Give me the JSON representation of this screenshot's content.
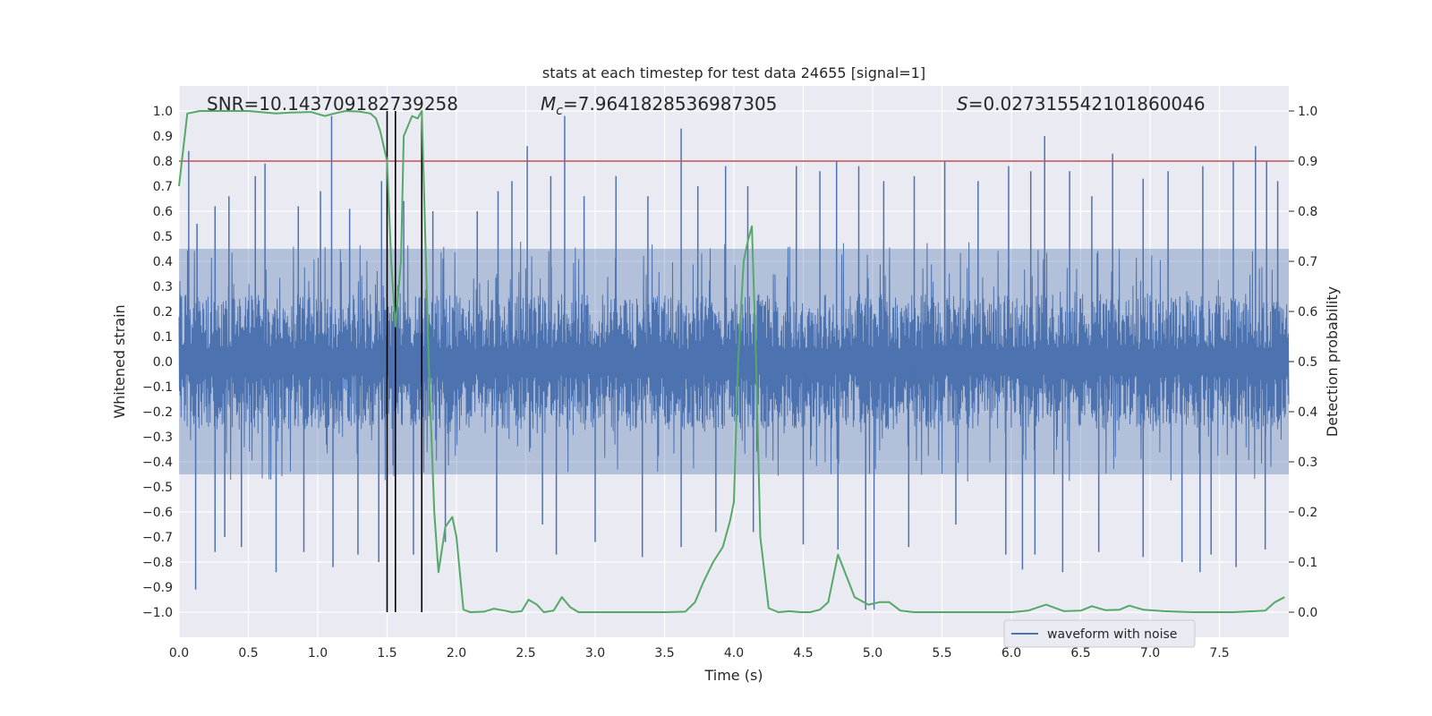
{
  "chart_data": {
    "type": "line",
    "title": "stats at each timestep for test data 24655 [signal=1]",
    "xlabel": "Time (s)",
    "ylabel": "Whitened strain",
    "y2label": "Detection probability",
    "xlim": [
      0.0,
      8.0
    ],
    "ylim": [
      -1.1,
      1.1
    ],
    "y2lim": [
      -0.05,
      1.05
    ],
    "xticks": [
      0.0,
      0.5,
      1.0,
      1.5,
      2.0,
      2.5,
      3.0,
      3.5,
      4.0,
      4.5,
      5.0,
      5.5,
      6.0,
      6.5,
      7.0,
      7.5
    ],
    "xtick_labels": [
      "0.0",
      "0.5",
      "1.0",
      "1.5",
      "2.0",
      "2.5",
      "3.0",
      "3.5",
      "4.0",
      "4.5",
      "5.0",
      "5.5",
      "6.0",
      "6.5",
      "7.0",
      "7.5"
    ],
    "yticks": [
      -1.0,
      -0.9,
      -0.8,
      -0.7,
      -0.6,
      -0.5,
      -0.4,
      -0.3,
      -0.2,
      -0.1,
      0.0,
      0.1,
      0.2,
      0.3,
      0.4,
      0.5,
      0.6,
      0.7,
      0.8,
      0.9,
      1.0
    ],
    "ytick_labels": [
      "−1.0",
      "−0.9",
      "−0.8",
      "−0.7",
      "−0.6",
      "−0.5",
      "−0.4",
      "−0.3",
      "−0.2",
      "−0.1",
      "0.0",
      "0.1",
      "0.2",
      "0.3",
      "0.4",
      "0.5",
      "0.6",
      "0.7",
      "0.8",
      "0.9",
      "1.0"
    ],
    "y2ticks": [
      0.0,
      0.1,
      0.2,
      0.3,
      0.4,
      0.5,
      0.6,
      0.7,
      0.8,
      0.9,
      1.0
    ],
    "y2tick_labels": [
      "0.0",
      "0.1",
      "0.2",
      "0.3",
      "0.4",
      "0.5",
      "0.6",
      "0.7",
      "0.8",
      "0.9",
      "1.0"
    ],
    "annotations": {
      "snr": "SNR=10.143709182739258",
      "mc_symbol": "M",
      "mc_sub": "c",
      "mc_value": "=7.9641828536987305",
      "s_symbol": "S",
      "s_value": "=0.027315542101860046"
    },
    "legend": {
      "label": "waveform with noise",
      "position": "lower-right"
    },
    "threshold": {
      "y2": 0.9,
      "color": "#c44e52"
    },
    "vertical_markers": [
      1.5,
      1.56,
      1.75
    ],
    "waveform": {
      "name": "waveform with noise",
      "color": "#4c72b0",
      "envelope_upper": 0.45,
      "envelope_lower": -0.45,
      "peaks_up": [
        [
          0.07,
          0.84
        ],
        [
          0.13,
          0.55
        ],
        [
          0.26,
          0.62
        ],
        [
          0.36,
          0.66
        ],
        [
          0.55,
          0.74
        ],
        [
          0.62,
          0.79
        ],
        [
          0.86,
          0.62
        ],
        [
          1.02,
          0.68
        ],
        [
          1.1,
          0.98
        ],
        [
          1.23,
          0.61
        ],
        [
          1.46,
          0.72
        ],
        [
          1.62,
          0.64
        ],
        [
          1.83,
          0.6
        ],
        [
          2.15,
          0.6
        ],
        [
          2.3,
          0.68
        ],
        [
          2.4,
          0.72
        ],
        [
          2.51,
          0.86
        ],
        [
          2.68,
          0.74
        ],
        [
          2.78,
          0.98
        ],
        [
          2.92,
          0.66
        ],
        [
          3.15,
          0.74
        ],
        [
          3.38,
          0.66
        ],
        [
          3.62,
          0.93
        ],
        [
          3.74,
          0.7
        ],
        [
          3.94,
          0.78
        ],
        [
          4.1,
          0.7
        ],
        [
          4.45,
          0.78
        ],
        [
          4.62,
          0.76
        ],
        [
          4.74,
          0.8
        ],
        [
          4.9,
          0.78
        ],
        [
          5.08,
          0.72
        ],
        [
          5.3,
          0.74
        ],
        [
          5.52,
          0.8
        ],
        [
          5.76,
          0.72
        ],
        [
          5.98,
          0.78
        ],
        [
          6.14,
          0.76
        ],
        [
          6.24,
          0.9
        ],
        [
          6.42,
          0.76
        ],
        [
          6.58,
          0.66
        ],
        [
          6.73,
          0.83
        ],
        [
          6.95,
          0.73
        ],
        [
          7.13,
          0.76
        ],
        [
          7.38,
          0.78
        ],
        [
          7.6,
          0.8
        ],
        [
          7.76,
          0.86
        ],
        [
          7.84,
          0.8
        ],
        [
          7.92,
          0.72
        ]
      ],
      "peaks_down": [
        [
          0.12,
          -0.91
        ],
        [
          0.26,
          -0.76
        ],
        [
          0.33,
          -0.7
        ],
        [
          0.45,
          -0.74
        ],
        [
          0.7,
          -0.84
        ],
        [
          0.9,
          -0.76
        ],
        [
          1.11,
          -0.82
        ],
        [
          1.29,
          -0.77
        ],
        [
          1.44,
          -0.8
        ],
        [
          1.69,
          -0.77
        ],
        [
          1.92,
          -0.72
        ],
        [
          2.29,
          -0.76
        ],
        [
          2.62,
          -0.65
        ],
        [
          2.72,
          -0.77
        ],
        [
          3.0,
          -0.72
        ],
        [
          3.34,
          -0.78
        ],
        [
          3.62,
          -0.74
        ],
        [
          3.87,
          -0.68
        ],
        [
          4.14,
          -0.68
        ],
        [
          4.5,
          -0.73
        ],
        [
          4.75,
          -0.75
        ],
        [
          4.95,
          -0.99
        ],
        [
          5.01,
          -0.99
        ],
        [
          5.26,
          -0.74
        ],
        [
          5.6,
          -0.65
        ],
        [
          5.96,
          -0.77
        ],
        [
          6.08,
          -0.83
        ],
        [
          6.17,
          -0.77
        ],
        [
          6.37,
          -0.84
        ],
        [
          6.63,
          -0.76
        ],
        [
          6.95,
          -0.78
        ],
        [
          7.23,
          -0.8
        ],
        [
          7.36,
          -0.84
        ],
        [
          7.44,
          -0.77
        ],
        [
          7.62,
          -0.82
        ],
        [
          7.83,
          -0.75
        ]
      ]
    },
    "probability": {
      "name": "detection probability",
      "color": "#55a868",
      "points": [
        [
          0.0,
          0.85
        ],
        [
          0.06,
          0.995
        ],
        [
          0.15,
          1.0
        ],
        [
          0.3,
          1.0
        ],
        [
          0.5,
          1.0
        ],
        [
          0.7,
          0.995
        ],
        [
          0.8,
          0.997
        ],
        [
          0.95,
          0.998
        ],
        [
          1.05,
          0.99
        ],
        [
          1.12,
          0.995
        ],
        [
          1.2,
          1.0
        ],
        [
          1.3,
          0.999
        ],
        [
          1.38,
          0.995
        ],
        [
          1.42,
          0.985
        ],
        [
          1.45,
          0.96
        ],
        [
          1.5,
          0.9
        ],
        [
          1.53,
          0.7
        ],
        [
          1.56,
          0.57
        ],
        [
          1.6,
          0.7
        ],
        [
          1.62,
          0.95
        ],
        [
          1.68,
          0.99
        ],
        [
          1.72,
          0.985
        ],
        [
          1.75,
          1.0
        ],
        [
          1.8,
          0.5
        ],
        [
          1.84,
          0.2
        ],
        [
          1.87,
          0.08
        ],
        [
          1.92,
          0.17
        ],
        [
          1.97,
          0.19
        ],
        [
          2.0,
          0.15
        ],
        [
          2.05,
          0.005
        ],
        [
          2.1,
          0.0
        ],
        [
          2.2,
          0.001
        ],
        [
          2.27,
          0.007
        ],
        [
          2.35,
          0.003
        ],
        [
          2.4,
          0.0
        ],
        [
          2.47,
          0.002
        ],
        [
          2.52,
          0.025
        ],
        [
          2.58,
          0.015
        ],
        [
          2.63,
          0.0
        ],
        [
          2.7,
          0.003
        ],
        [
          2.76,
          0.03
        ],
        [
          2.82,
          0.01
        ],
        [
          2.88,
          0.0
        ],
        [
          3.0,
          0.0
        ],
        [
          3.15,
          0.0
        ],
        [
          3.5,
          0.0
        ],
        [
          3.65,
          0.001
        ],
        [
          3.72,
          0.02
        ],
        [
          3.78,
          0.06
        ],
        [
          3.85,
          0.1
        ],
        [
          3.92,
          0.13
        ],
        [
          3.97,
          0.18
        ],
        [
          4.0,
          0.22
        ],
        [
          4.03,
          0.5
        ],
        [
          4.07,
          0.7
        ],
        [
          4.1,
          0.74
        ],
        [
          4.13,
          0.77
        ],
        [
          4.16,
          0.5
        ],
        [
          4.19,
          0.15
        ],
        [
          4.25,
          0.008
        ],
        [
          4.32,
          0.0
        ],
        [
          4.4,
          0.002
        ],
        [
          4.48,
          0.0
        ],
        [
          4.55,
          0.0
        ],
        [
          4.62,
          0.005
        ],
        [
          4.68,
          0.02
        ],
        [
          4.75,
          0.115
        ],
        [
          4.8,
          0.08
        ],
        [
          4.87,
          0.03
        ],
        [
          4.97,
          0.015
        ],
        [
          5.05,
          0.02
        ],
        [
          5.12,
          0.02
        ],
        [
          5.2,
          0.003
        ],
        [
          5.3,
          0.0
        ],
        [
          5.5,
          0.0
        ],
        [
          6.0,
          0.0
        ],
        [
          6.12,
          0.003
        ],
        [
          6.25,
          0.015
        ],
        [
          6.38,
          0.002
        ],
        [
          6.5,
          0.003
        ],
        [
          6.58,
          0.012
        ],
        [
          6.68,
          0.004
        ],
        [
          6.78,
          0.005
        ],
        [
          6.85,
          0.013
        ],
        [
          6.95,
          0.005
        ],
        [
          7.1,
          0.002
        ],
        [
          7.3,
          0.0
        ],
        [
          7.6,
          0.0
        ],
        [
          7.83,
          0.003
        ],
        [
          7.9,
          0.02
        ],
        [
          7.97,
          0.03
        ]
      ]
    }
  }
}
